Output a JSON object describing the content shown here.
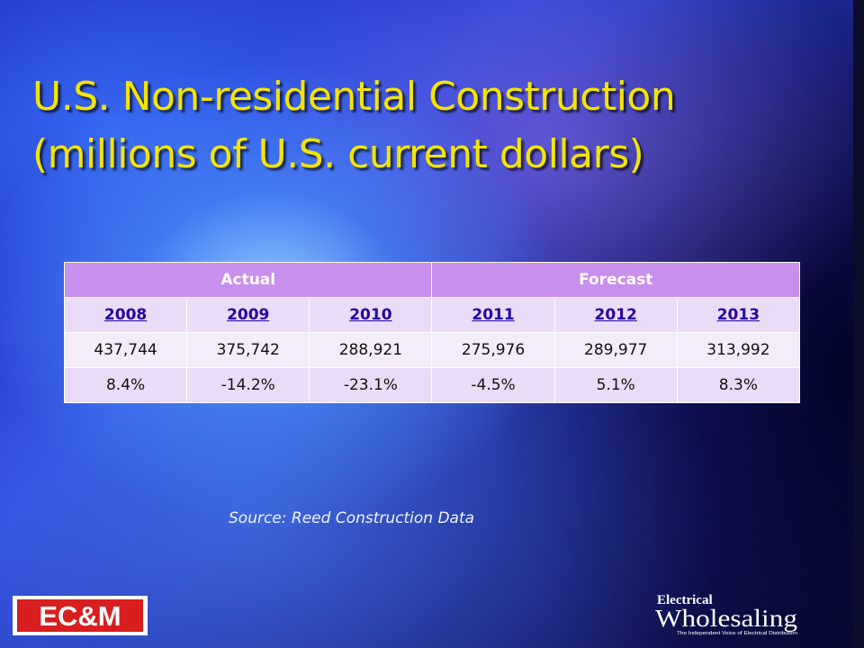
{
  "slide": {
    "title_lines": [
      "U.S. Non-residential Construction",
      "(millions of U.S. current dollars)"
    ],
    "source": "Source: Reed Construction Data"
  },
  "table": {
    "group_headers": [
      "Actual",
      "Forecast"
    ],
    "years": [
      "2008",
      "2009",
      "2010",
      "2011",
      "2012",
      "2013"
    ],
    "values": [
      "437,744",
      "375,742",
      "288,921",
      "275,976",
      "289,977",
      "313,992"
    ],
    "percent_change": [
      "8.4%",
      "-14.2%",
      "-23.1%",
      "-4.5%",
      "5.1%",
      "8.3%"
    ]
  },
  "logos": {
    "left": "EC&M",
    "right_top": "Electrical",
    "right_main": "Wholesaling",
    "right_tagline": "The Independent Voice of Electrical Distribution"
  },
  "colors": {
    "title": "#f5e400",
    "header_bg": "#c98fec",
    "row_bg": "#eadcf6",
    "logo_red": "#d81e1e"
  }
}
